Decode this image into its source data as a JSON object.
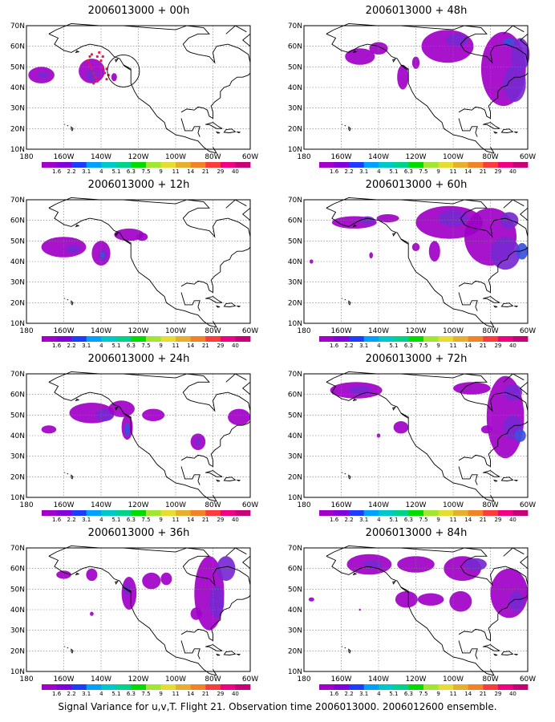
{
  "panels": [
    {
      "title": "2006013000 + 00h"
    },
    {
      "title": "2006013000 + 48h"
    },
    {
      "title": "2006013000 + 12h"
    },
    {
      "title": "2006013000 + 60h"
    },
    {
      "title": "2006013000 + 24h"
    },
    {
      "title": "2006013000 + 72h"
    },
    {
      "title": "2006013000 + 36h"
    },
    {
      "title": "2006013000 + 84h"
    }
  ],
  "map": {
    "lat_labels": [
      "70N",
      "60N",
      "50N",
      "40N",
      "30N",
      "20N",
      "10N"
    ],
    "lon_labels": [
      "180",
      "160W",
      "140W",
      "120W",
      "100W",
      "80W",
      "60W"
    ],
    "lat_values": [
      70,
      60,
      50,
      40,
      30,
      20,
      10
    ],
    "lon_values": [
      -180,
      -160,
      -140,
      -120,
      -100,
      -80,
      -60
    ]
  },
  "colorbar": {
    "labels": [
      "1.6",
      "2.2",
      "3.1",
      "4",
      "5.1",
      "6.3",
      "7.5",
      "9",
      "11",
      "14",
      "21",
      "29",
      "40"
    ],
    "colors": [
      "#a000c8",
      "#8200dc",
      "#1e3cff",
      "#00a0ff",
      "#00c8c8",
      "#00d28c",
      "#00dc00",
      "#a0e632",
      "#e6dc32",
      "#e6af2d",
      "#f08228",
      "#fa3c3c",
      "#f00082"
    ]
  },
  "caption": "Signal Variance for u,v,T. Flight 21. Observation time 2006013000. 2006012600 ensemble.",
  "colors": {
    "variance_outer": "#a000c8",
    "variance_inner": "#7828d2",
    "variance_core": "#3c50dc",
    "obs_points": "#e6194b"
  }
}
